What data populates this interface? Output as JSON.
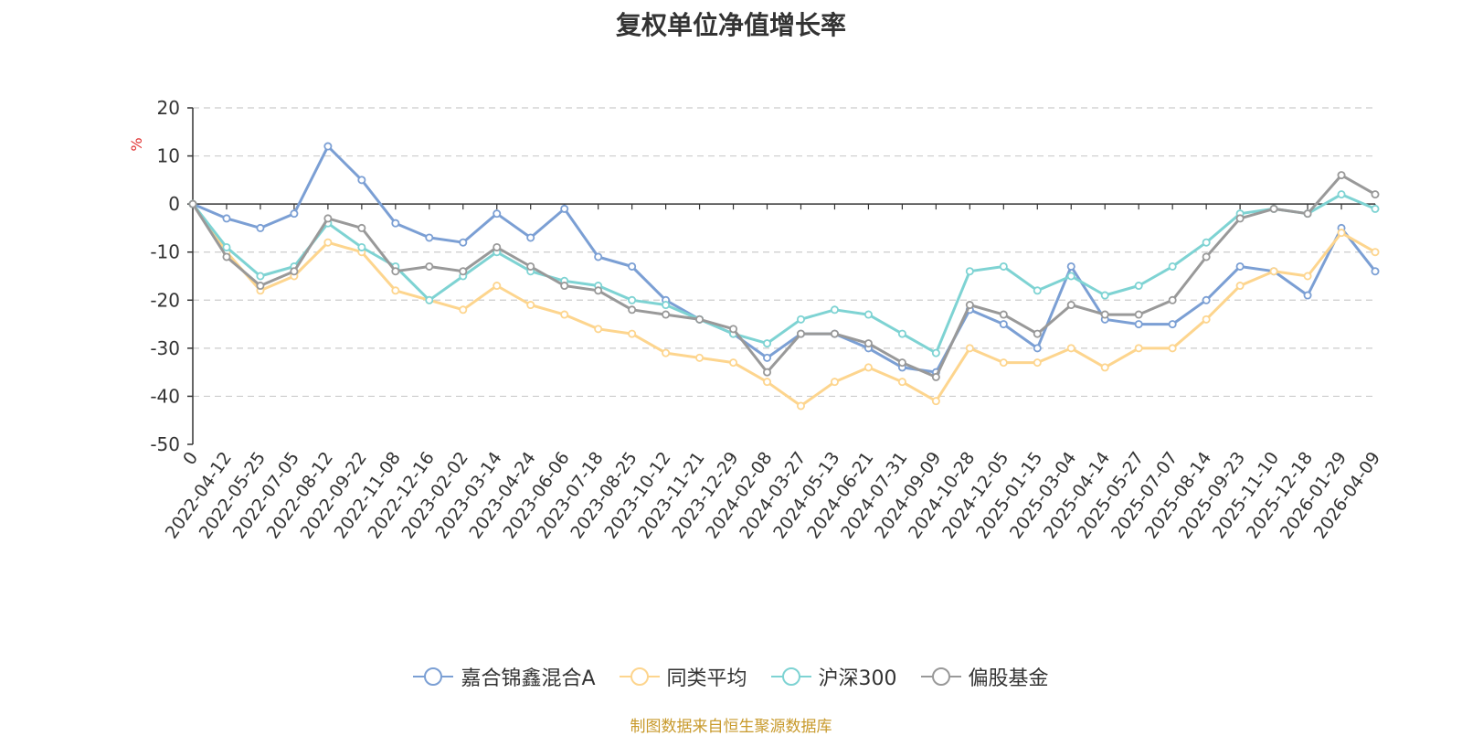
{
  "title": "复权单位净值增长率",
  "source_note": "制图数据来自恒生聚源数据库",
  "chart_data": {
    "type": "line",
    "title": "复权单位净值增长率",
    "ylabel": "%",
    "ylim": [
      -50,
      20
    ],
    "yticks": [
      20,
      10,
      0,
      -10,
      -20,
      -30,
      -40,
      -50
    ],
    "grid": true,
    "legend_position": "bottom",
    "x_tick_labels": [
      "0",
      "2022-04-12",
      "2022-05-25",
      "2022-07-05",
      "2022-08-12",
      "2022-09-22",
      "2022-11-08",
      "2022-12-16",
      "2023-02-02",
      "2023-03-14",
      "2023-04-24",
      "2023-06-06",
      "2023-07-18",
      "2023-08-25",
      "2023-10-12",
      "2023-11-21",
      "2023-12-29",
      "2024-02-08",
      "2024-03-27",
      "2024-05-13",
      "2024-06-21",
      "2024-07-31",
      "2024-09-09",
      "2024-10-28",
      "2024-12-05",
      "2025-01-15",
      "2025-03-04",
      "2025-04-14",
      "2025-05-27",
      "2025-07-07",
      "2025-08-14",
      "2025-09-23",
      "2025-11-10",
      "2025-12-18",
      "2026-01-29",
      "2026-04-09"
    ],
    "series": [
      {
        "name": "嘉合锦鑫混合A",
        "color": "#7b9fd4",
        "values": [
          0,
          -3,
          -5,
          -2,
          12,
          5,
          -4,
          -7,
          -8,
          -2,
          -7,
          -1,
          -11,
          -13,
          -20,
          -24,
          -27,
          -32,
          -27,
          -27,
          -30,
          -34,
          -35,
          -22,
          -25,
          -30,
          -13,
          -24,
          -25,
          -25,
          -20,
          -13,
          -14,
          -19,
          -5,
          -14
        ]
      },
      {
        "name": "同类平均",
        "color": "#fdd58e",
        "values": [
          0,
          -10,
          -18,
          -15,
          -8,
          -10,
          -18,
          -20,
          -22,
          -17,
          -21,
          -23,
          -26,
          -27,
          -31,
          -32,
          -33,
          -37,
          -42,
          -37,
          -34,
          -37,
          -41,
          -30,
          -33,
          -33,
          -30,
          -34,
          -30,
          -30,
          -24,
          -17,
          -14,
          -15,
          -6,
          -10
        ]
      },
      {
        "name": "沪深300",
        "color": "#7ed3d3",
        "values": [
          0,
          -9,
          -15,
          -13,
          -4,
          -9,
          -13,
          -20,
          -15,
          -10,
          -14,
          -16,
          -17,
          -20,
          -21,
          -24,
          -27,
          -29,
          -24,
          -22,
          -23,
          -27,
          -31,
          -14,
          -13,
          -18,
          -15,
          -19,
          -17,
          -13,
          -8,
          -2,
          -1,
          -2,
          2,
          -1
        ]
      },
      {
        "name": "偏股基金",
        "color": "#999999",
        "values": [
          0,
          -11,
          -17,
          -14,
          -3,
          -5,
          -14,
          -13,
          -14,
          -9,
          -13,
          -17,
          -18,
          -22,
          -23,
          -24,
          -26,
          -35,
          -27,
          -27,
          -29,
          -33,
          -36,
          -21,
          -23,
          -27,
          -21,
          -23,
          -23,
          -20,
          -11,
          -3,
          -1,
          -2,
          6,
          2
        ]
      }
    ]
  }
}
